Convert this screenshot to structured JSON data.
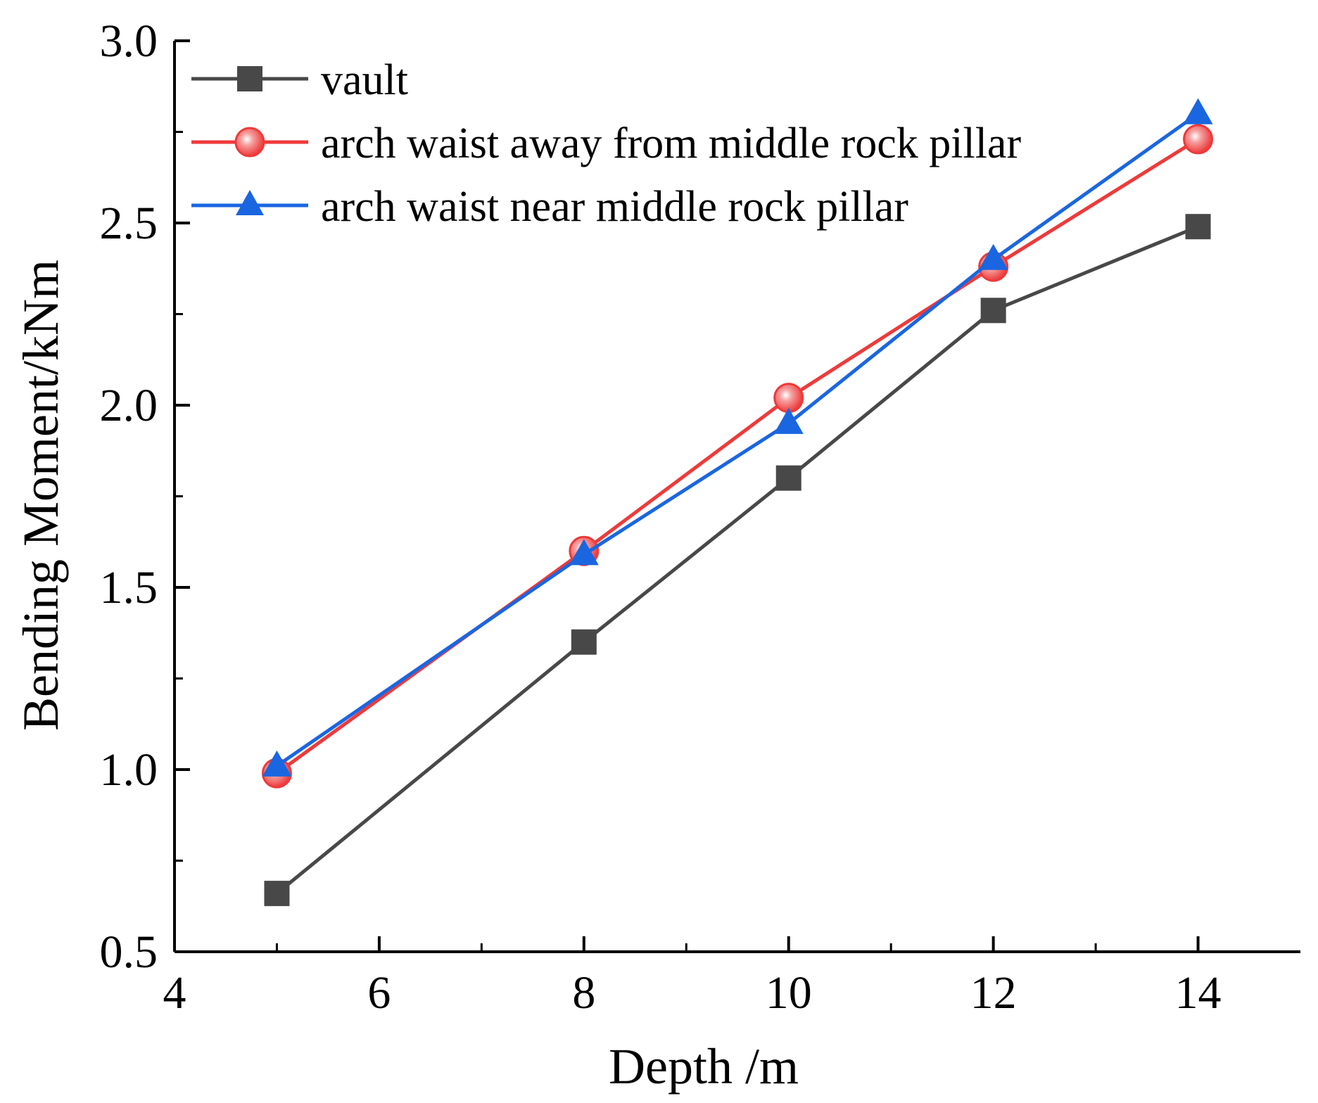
{
  "chart_data": {
    "type": "line",
    "title": "",
    "xlabel": "Depth /m",
    "ylabel": "Bending Moment/kNm",
    "xlim": [
      4,
      15
    ],
    "ylim": [
      0.5,
      3.0
    ],
    "x_ticks": [
      4,
      6,
      8,
      10,
      12,
      14
    ],
    "x_tick_labels": [
      "4",
      "6",
      "8",
      "10",
      "12",
      "14"
    ],
    "y_ticks": [
      0.5,
      1.0,
      1.5,
      2.0,
      2.5,
      3.0
    ],
    "y_tick_labels": [
      "0.5",
      "1.0",
      "1.5",
      "2.0",
      "2.5",
      "3.0"
    ],
    "grid": false,
    "legend_position": "top-left",
    "x": [
      5,
      8,
      10,
      12,
      14
    ],
    "series": [
      {
        "name": "vault",
        "values": [
          0.66,
          1.35,
          1.8,
          2.26,
          2.49
        ],
        "color": "#484848",
        "marker": "square"
      },
      {
        "name": "arch waist away from middle rock pillar",
        "values": [
          0.99,
          1.6,
          2.02,
          2.38,
          2.73
        ],
        "color": "#ee3a3a",
        "marker": "circle"
      },
      {
        "name": "arch waist near middle rock pillar",
        "values": [
          1.01,
          1.59,
          1.95,
          2.4,
          2.8
        ],
        "color": "#1a66e0",
        "marker": "triangle"
      }
    ]
  }
}
